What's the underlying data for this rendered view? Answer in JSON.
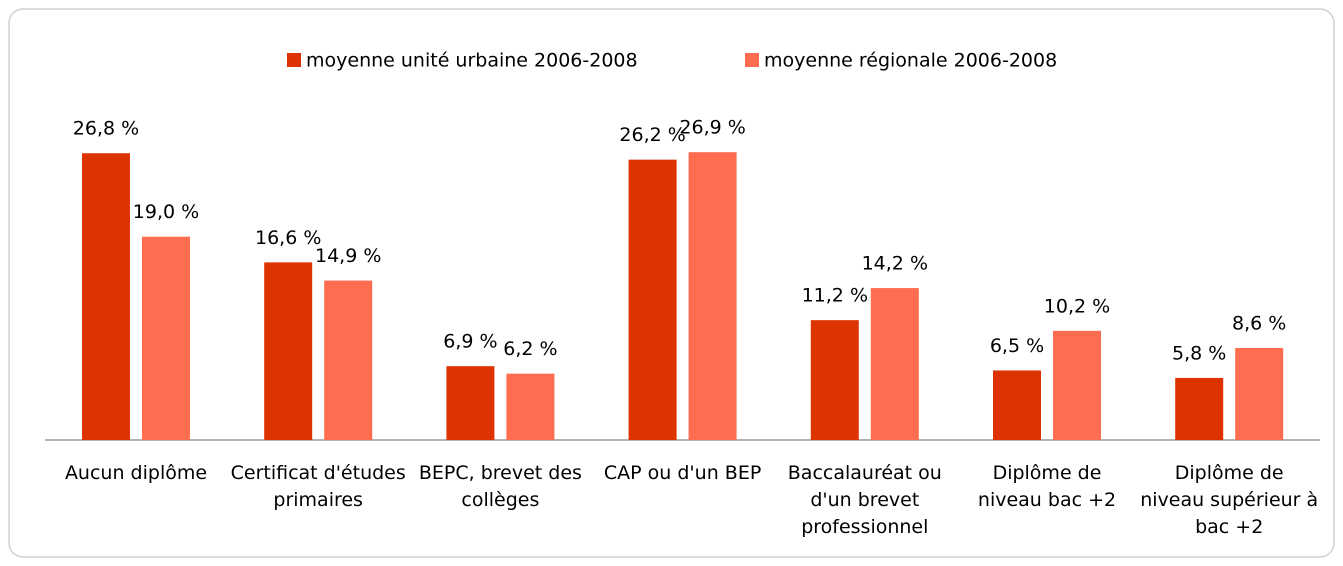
{
  "chart_data": {
    "type": "bar",
    "categories": [
      "Aucun diplôme",
      "Certificat d'études primaires",
      "BEPC, brevet des collèges",
      "CAP ou d'un BEP",
      "Baccalauréat ou d'un brevet professionnel",
      "Diplôme de niveau bac +2",
      "Diplôme de niveau supérieur à bac +2"
    ],
    "series": [
      {
        "name": "moyenne unité urbaine 2006-2008",
        "color": "#dc3300",
        "values": [
          26.8,
          16.6,
          6.9,
          26.2,
          11.2,
          6.5,
          5.8
        ],
        "value_labels": [
          "26,8 %",
          "16,6 %",
          "6,9 %",
          "26,2 %",
          "11,2 %",
          "6,5 %",
          "5,8 %"
        ]
      },
      {
        "name": "moyenne régionale 2006-2008",
        "color": "#ff6d50",
        "values": [
          19.0,
          14.9,
          6.2,
          26.9,
          14.2,
          10.2,
          8.6
        ],
        "value_labels": [
          "19,0 %",
          "14,9 %",
          "6,2 %",
          "26,9 %",
          "14,2 %",
          "10,2 %",
          "8,6 %"
        ]
      }
    ],
    "legend": "top"
  }
}
